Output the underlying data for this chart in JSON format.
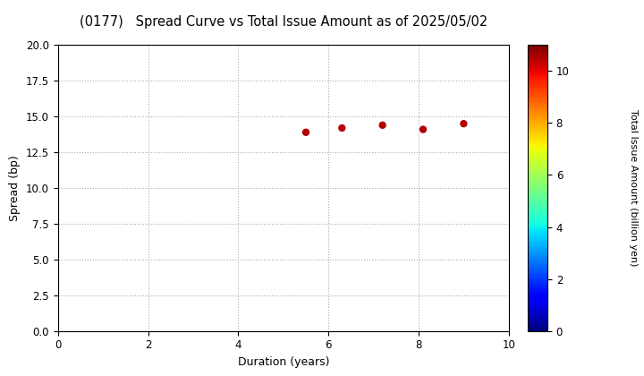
{
  "title": "(0177)   Spread Curve vs Total Issue Amount as of 2025/05/02",
  "xlabel": "Duration (years)",
  "ylabel": "Spread (bp)",
  "colorbar_label": "Total Issue Amount (billion yen)",
  "xlim": [
    0,
    10
  ],
  "ylim": [
    0.0,
    20.0
  ],
  "xticks": [
    0,
    2,
    4,
    6,
    8,
    10
  ],
  "yticks": [
    0.0,
    2.5,
    5.0,
    7.5,
    10.0,
    12.5,
    15.0,
    17.5,
    20.0
  ],
  "colorbar_ticks": [
    0,
    2,
    4,
    6,
    8,
    10
  ],
  "colorbar_lim": [
    0,
    11
  ],
  "scatter_x": [
    5.5,
    6.3,
    7.2,
    8.1,
    9.0
  ],
  "scatter_y": [
    13.9,
    14.2,
    14.4,
    14.1,
    14.5
  ],
  "scatter_color_values": [
    10.5,
    10.5,
    10.5,
    10.5,
    10.5
  ],
  "marker_size": 25,
  "background_color": "#ffffff",
  "grid_color": "#aaaaaa",
  "title_fontsize": 10.5
}
